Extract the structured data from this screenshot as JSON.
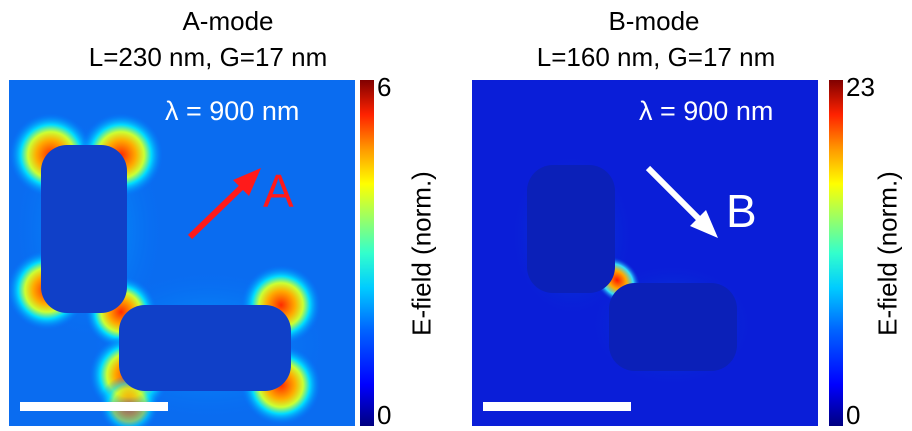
{
  "panels": [
    {
      "title_line1": "A-mode",
      "title_line2": "L=230 nm, G=17 nm",
      "wavelength_label": "λ = 900 nm",
      "polarization_letter": "A",
      "arrow_color": "#ff1a1a",
      "colorbar_max": "6",
      "colorbar_min": "0",
      "colorbar_label": "E-field (norm.)"
    },
    {
      "title_line1": "B-mode",
      "title_line2": "L=160 nm, G=17 nm",
      "wavelength_label": "λ = 900 nm",
      "polarization_letter": "B",
      "arrow_color": "#ffffff",
      "colorbar_max": "23",
      "colorbar_min": "0",
      "colorbar_label": "E-field (norm.)"
    }
  ]
}
